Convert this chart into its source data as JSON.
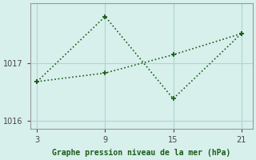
{
  "line1_x": [
    3,
    9,
    15,
    21
  ],
  "line1_y": [
    1016.68,
    1017.82,
    1016.38,
    1017.52
  ],
  "line2_x": [
    3,
    9,
    15,
    21
  ],
  "line2_y": [
    1016.68,
    1016.83,
    1017.15,
    1017.52
  ],
  "line_color": "#1a5c1a",
  "bg_color": "#d8f0ec",
  "grid_color": "#b0d4ce",
  "xlabel": "Graphe pression niveau de la mer (hPa)",
  "xlabel_color": "#1a5c1a",
  "xticks": [
    3,
    9,
    15,
    21
  ],
  "yticks": [
    1016,
    1017
  ],
  "ylim": [
    1015.85,
    1018.05
  ],
  "xlim": [
    2.4,
    22.0
  ],
  "tick_color": "#444444",
  "spine_color": "#999999",
  "tick_labelsize": 7
}
